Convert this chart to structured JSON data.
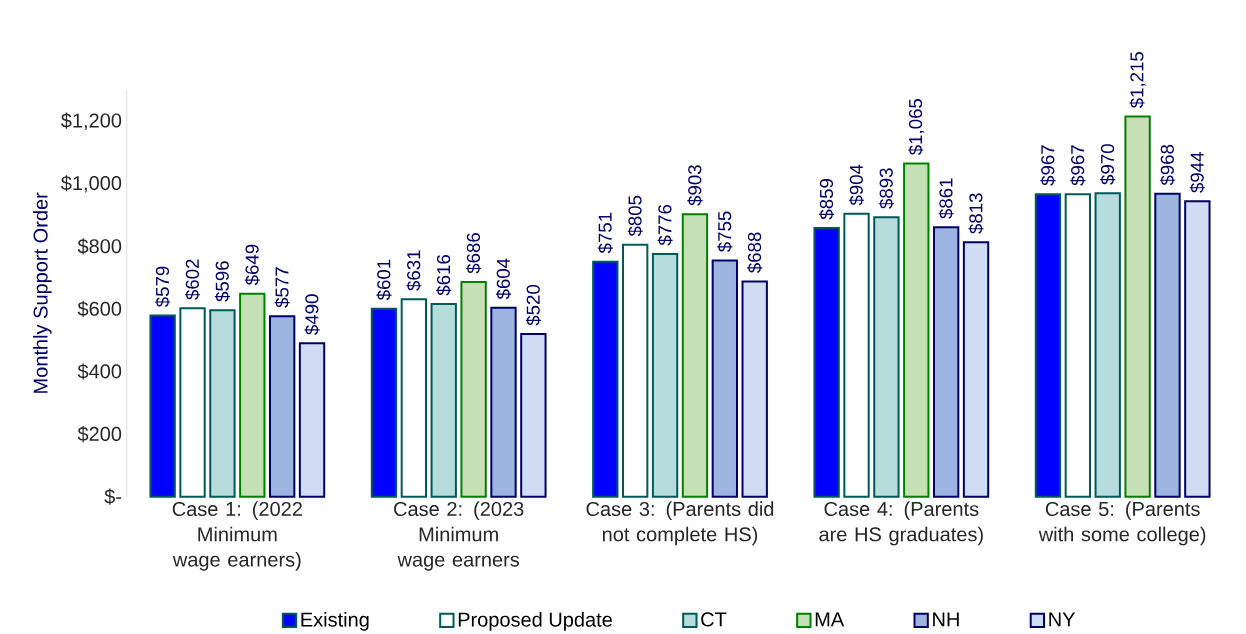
{
  "chart_data": {
    "type": "bar",
    "ylabel": "Monthly Support Order",
    "categories": [
      "Case 1: (2022 Minimum wage earners)",
      "Case 2: (2023 Minimum wage earners",
      "Case 3: (Parents did not complete HS)",
      "Case 4: (Parents are HS graduates)",
      "Case 5: (Parents with some college)"
    ],
    "series": [
      {
        "name": "Existing",
        "color": "#0000ff",
        "values": [
          579,
          601,
          751,
          859,
          967
        ],
        "value_labels": [
          "$579",
          "$601",
          "$751",
          "$859",
          "$967"
        ]
      },
      {
        "name": "Proposed Update",
        "color": "#ffffff",
        "values": [
          602,
          631,
          805,
          904,
          967
        ],
        "value_labels": [
          "$602",
          "$631",
          "$805",
          "$904",
          "$967"
        ]
      },
      {
        "name": "CT",
        "color": "#b7dcdc",
        "values": [
          596,
          616,
          776,
          893,
          970
        ],
        "value_labels": [
          "$596",
          "$616",
          "$776",
          "$893",
          "$970"
        ]
      },
      {
        "name": "MA",
        "color": "#c5e0b4",
        "values": [
          649,
          686,
          903,
          1065,
          1215
        ],
        "value_labels": [
          "$649",
          "$686",
          "$903",
          "$1,065",
          "$1,215"
        ]
      },
      {
        "name": "NH",
        "color": "#9db3e0",
        "values": [
          577,
          604,
          755,
          861,
          968
        ],
        "value_labels": [
          "$577",
          "$604",
          "$755",
          "$861",
          "$968"
        ]
      },
      {
        "name": "NY",
        "color": "#d0dcf2",
        "values": [
          490,
          520,
          688,
          813,
          944
        ],
        "value_labels": [
          "$490",
          "$520",
          "$688",
          "$813",
          "$944"
        ]
      }
    ],
    "ylim": [
      0,
      1300
    ],
    "yticks": [
      {
        "value": 0,
        "label": "$-"
      },
      {
        "value": 200,
        "label": "$200"
      },
      {
        "value": 400,
        "label": "$400"
      },
      {
        "value": 600,
        "label": "$600"
      },
      {
        "value": 800,
        "label": "$800"
      },
      {
        "value": 1000,
        "label": "$1,000"
      },
      {
        "value": 1200,
        "label": "$1,200"
      }
    ],
    "legend": "bottom",
    "grid": false
  }
}
